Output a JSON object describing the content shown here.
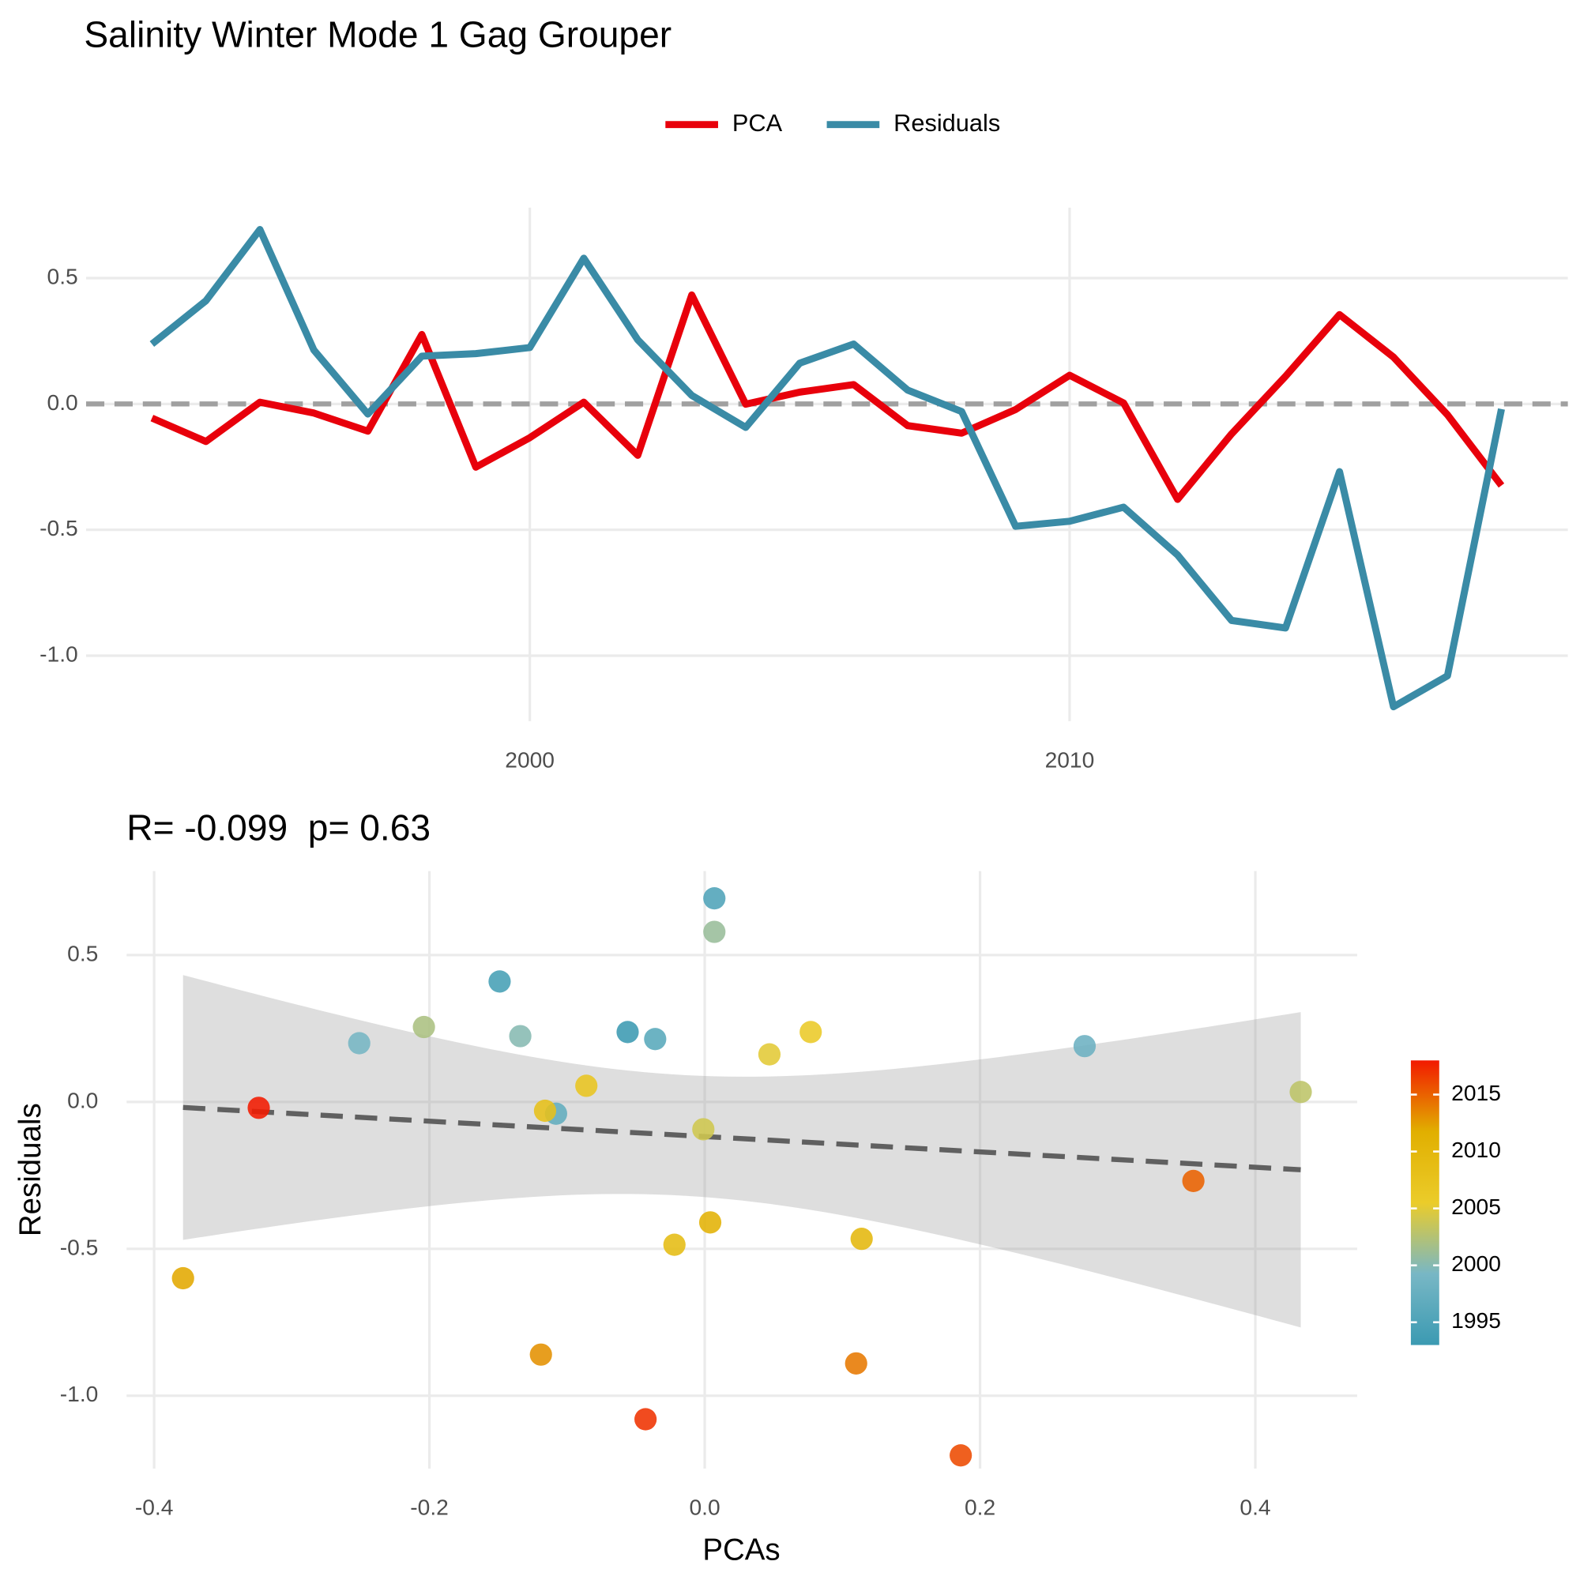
{
  "chart_data": [
    {
      "type": "line",
      "title": "Salinity Winter Mode 1 Gag Grouper",
      "legend": "top",
      "x": [
        1993,
        1994,
        1995,
        1996,
        1997,
        1998,
        1999,
        2000,
        2001,
        2002,
        2003,
        2004,
        2005,
        2006,
        2007,
        2008,
        2009,
        2010,
        2011,
        2012,
        2013,
        2014,
        2015,
        2016,
        2017,
        2018
      ],
      "series": [
        {
          "name": "PCA",
          "color": "#e8000b",
          "values": [
            -0.056,
            -0.149,
            0.007,
            -0.036,
            -0.108,
            0.276,
            -0.251,
            -0.134,
            0.007,
            -0.204,
            0.433,
            -0.001,
            0.047,
            0.077,
            -0.086,
            -0.116,
            -0.022,
            0.114,
            0.004,
            -0.379,
            -0.119,
            0.11,
            0.355,
            0.186,
            -0.043,
            -0.324
          ]
        },
        {
          "name": "Residuals",
          "color": "#3a8ba6",
          "values": [
            0.238,
            0.41,
            0.693,
            0.214,
            -0.04,
            0.19,
            0.2,
            0.224,
            0.579,
            0.255,
            0.034,
            -0.093,
            0.162,
            0.238,
            0.055,
            -0.03,
            -0.486,
            -0.466,
            -0.41,
            -0.6,
            -0.86,
            -0.89,
            -0.269,
            -1.203,
            -1.08,
            -0.02
          ]
        }
      ],
      "hline": 0,
      "xlim": [
        1991.78,
        2019.23
      ],
      "xticks": [
        2000,
        2010
      ],
      "ylim": [
        -1.26,
        0.78
      ],
      "yticks": [
        0.5,
        {
          "value": 0,
          "label": "0.0"
        },
        -0.5,
        {
          "value": -1,
          "label": "-1.0"
        }
      ],
      "grid": true
    },
    {
      "type": "scatter",
      "title": "R= -0.099  p= 0.63",
      "x_label": "PCAs",
      "y_label": "Residuals",
      "x": [
        -0.056,
        -0.149,
        0.007,
        -0.036,
        -0.108,
        0.276,
        -0.251,
        -0.134,
        0.007,
        -0.204,
        0.433,
        -0.001,
        0.047,
        0.077,
        -0.086,
        -0.116,
        -0.022,
        0.114,
        0.004,
        -0.379,
        -0.119,
        0.11,
        0.355,
        0.186,
        -0.043,
        -0.324
      ],
      "values": [
        0.238,
        0.41,
        0.693,
        0.214,
        -0.04,
        0.19,
        0.2,
        0.224,
        0.579,
        0.255,
        0.034,
        -0.093,
        0.162,
        0.238,
        0.055,
        -0.03,
        -0.486,
        -0.466,
        -0.41,
        -0.6,
        -0.86,
        -0.89,
        -0.269,
        -1.203,
        -1.08,
        -0.02
      ],
      "color_values": [
        1993,
        1994,
        1995,
        1996,
        1997,
        1998,
        1999,
        2000,
        2001,
        2002,
        2003,
        2004,
        2005,
        2006,
        2007,
        2008,
        2009,
        2010,
        2011,
        2012,
        2013,
        2014,
        2015,
        2016,
        2017,
        2018
      ],
      "palette": [
        "#3B9AB2",
        "#78B7C5",
        "#EBCC2A",
        "#E1AF00",
        "#F21A00"
      ],
      "color_lim": [
        1993,
        2018
      ],
      "color_ticks": [
        1995,
        2000,
        2005,
        2010,
        2015
      ],
      "fit": "lm",
      "xlim": [
        -0.42,
        0.474
      ],
      "xticks": [
        -0.4,
        -0.2,
        {
          "value": 0,
          "label": "0.0"
        },
        0.2,
        0.4
      ],
      "ylim": [
        -1.248,
        0.786
      ],
      "yticks": [
        0.5,
        {
          "value": 0,
          "label": "0.0"
        },
        -0.5,
        {
          "value": -1,
          "label": "-1.0"
        }
      ],
      "grid": true
    }
  ]
}
